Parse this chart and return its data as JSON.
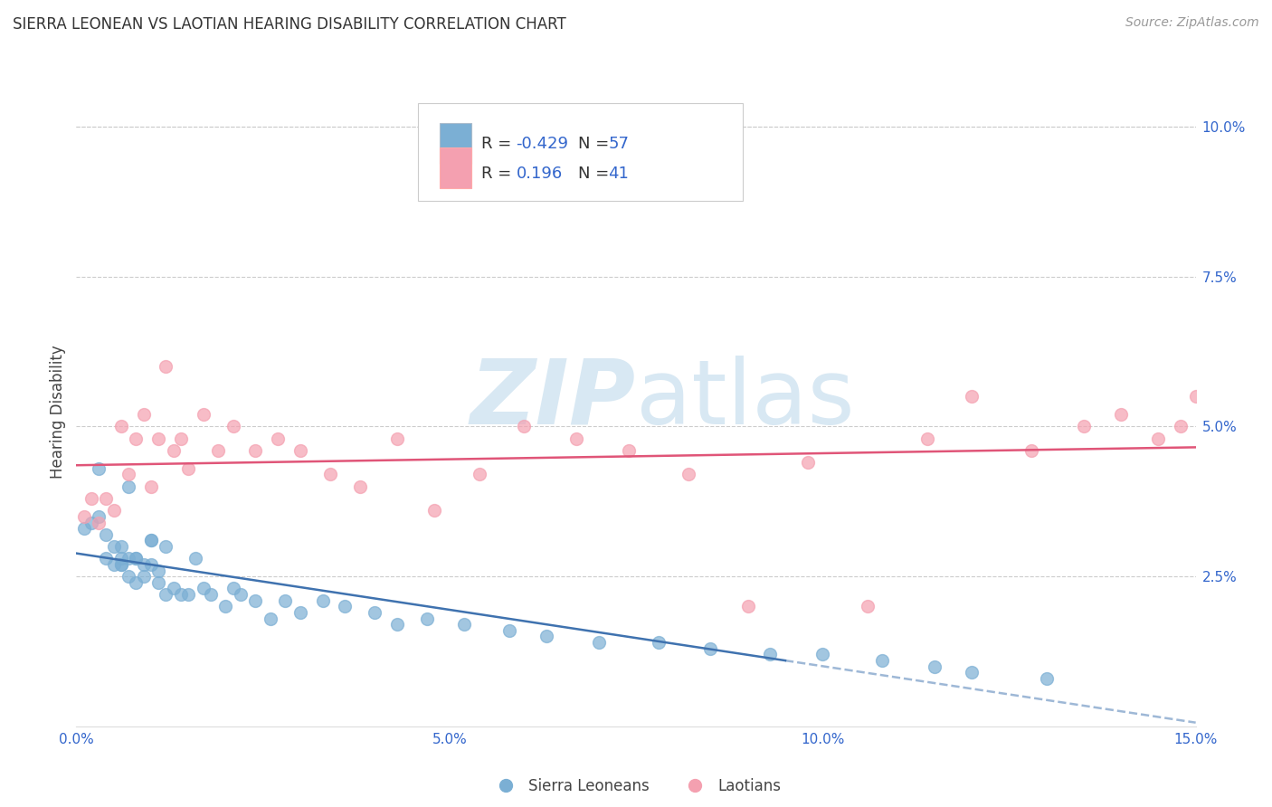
{
  "title": "SIERRA LEONEAN VS LAOTIAN HEARING DISABILITY CORRELATION CHART",
  "source": "Source: ZipAtlas.com",
  "ylabel": "Hearing Disability",
  "xlim": [
    0.0,
    0.15
  ],
  "ylim": [
    0.0,
    0.105
  ],
  "x_ticks": [
    0.0,
    0.05,
    0.1,
    0.15
  ],
  "x_tick_labels": [
    "0.0%",
    "5.0%",
    "10.0%",
    "15.0%"
  ],
  "y_ticks_right": [
    0.0,
    0.025,
    0.05,
    0.075,
    0.1
  ],
  "y_tick_labels_right": [
    "",
    "2.5%",
    "5.0%",
    "7.5%",
    "10.0%"
  ],
  "sierra_R": -0.429,
  "sierra_N": 57,
  "laotian_R": 0.196,
  "laotian_N": 41,
  "sierra_color": "#7BAFD4",
  "laotian_color": "#F4A0B0",
  "sierra_line_color": "#3F72AF",
  "laotian_line_color": "#E05578",
  "watermark_zip": "ZIP",
  "watermark_atlas": "atlas",
  "watermark_color": "#D8E8F3",
  "background_color": "#FFFFFF",
  "grid_color": "#CCCCCC",
  "legend_text_color": "#3366CC",
  "sierra_x": [
    0.001,
    0.002,
    0.003,
    0.003,
    0.004,
    0.004,
    0.005,
    0.005,
    0.006,
    0.006,
    0.006,
    0.006,
    0.007,
    0.007,
    0.007,
    0.008,
    0.008,
    0.008,
    0.009,
    0.009,
    0.01,
    0.01,
    0.01,
    0.011,
    0.011,
    0.012,
    0.012,
    0.013,
    0.014,
    0.015,
    0.016,
    0.017,
    0.018,
    0.02,
    0.021,
    0.022,
    0.024,
    0.026,
    0.028,
    0.03,
    0.033,
    0.036,
    0.04,
    0.043,
    0.047,
    0.052,
    0.058,
    0.063,
    0.07,
    0.078,
    0.085,
    0.093,
    0.1,
    0.108,
    0.115,
    0.12,
    0.13
  ],
  "sierra_y": [
    0.033,
    0.034,
    0.035,
    0.043,
    0.032,
    0.028,
    0.027,
    0.03,
    0.027,
    0.027,
    0.028,
    0.03,
    0.025,
    0.028,
    0.04,
    0.028,
    0.024,
    0.028,
    0.025,
    0.027,
    0.027,
    0.031,
    0.031,
    0.024,
    0.026,
    0.022,
    0.03,
    0.023,
    0.022,
    0.022,
    0.028,
    0.023,
    0.022,
    0.02,
    0.023,
    0.022,
    0.021,
    0.018,
    0.021,
    0.019,
    0.021,
    0.02,
    0.019,
    0.017,
    0.018,
    0.017,
    0.016,
    0.015,
    0.014,
    0.014,
    0.013,
    0.012,
    0.012,
    0.011,
    0.01,
    0.009,
    0.008
  ],
  "laotian_x": [
    0.001,
    0.002,
    0.003,
    0.004,
    0.005,
    0.006,
    0.007,
    0.008,
    0.009,
    0.01,
    0.011,
    0.012,
    0.013,
    0.014,
    0.015,
    0.017,
    0.019,
    0.021,
    0.024,
    0.027,
    0.03,
    0.034,
    0.038,
    0.043,
    0.048,
    0.054,
    0.06,
    0.067,
    0.074,
    0.082,
    0.09,
    0.098,
    0.106,
    0.114,
    0.12,
    0.128,
    0.135,
    0.14,
    0.145,
    0.148,
    0.15
  ],
  "laotian_y": [
    0.035,
    0.038,
    0.034,
    0.038,
    0.036,
    0.05,
    0.042,
    0.048,
    0.052,
    0.04,
    0.048,
    0.06,
    0.046,
    0.048,
    0.043,
    0.052,
    0.046,
    0.05,
    0.046,
    0.048,
    0.046,
    0.042,
    0.04,
    0.048,
    0.036,
    0.042,
    0.05,
    0.048,
    0.046,
    0.042,
    0.02,
    0.044,
    0.02,
    0.048,
    0.055,
    0.046,
    0.05,
    0.052,
    0.048,
    0.05,
    0.055
  ]
}
